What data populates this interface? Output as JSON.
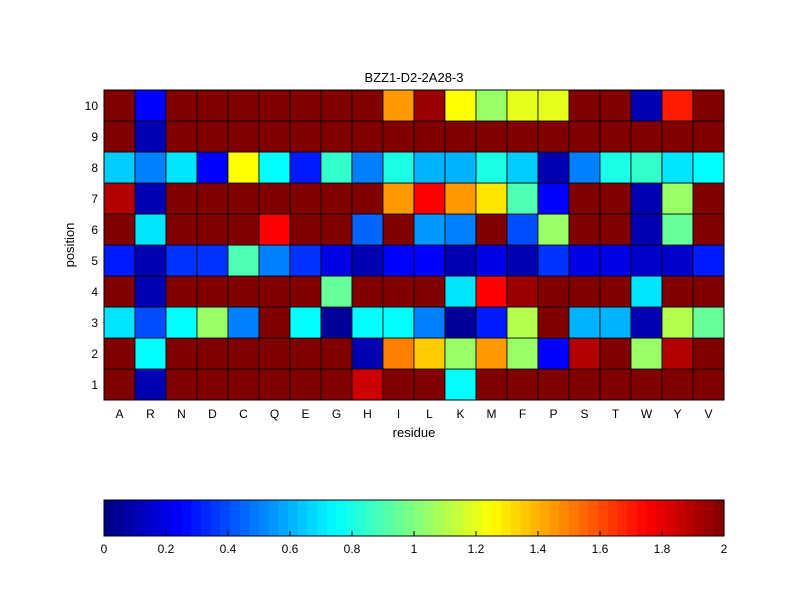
{
  "chart_data": {
    "type": "heatmap",
    "title": "BZZ1-D2-2A28-3",
    "xlabel": "residue",
    "ylabel": "position",
    "x_categories": [
      "A",
      "R",
      "N",
      "D",
      "C",
      "Q",
      "E",
      "G",
      "H",
      "I",
      "L",
      "K",
      "M",
      "F",
      "P",
      "S",
      "T",
      "W",
      "Y",
      "V"
    ],
    "y_categories": [
      "1",
      "2",
      "3",
      "4",
      "5",
      "6",
      "7",
      "8",
      "9",
      "10"
    ],
    "colormap": "jet",
    "clim": [
      0,
      2
    ],
    "colorbar": {
      "orientation": "horizontal",
      "placement": "bottom",
      "ticks": [
        "0",
        "0.2",
        "0.4",
        "0.6",
        "0.8",
        "1",
        "1.2",
        "1.4",
        "1.6",
        "1.8",
        "2"
      ]
    },
    "grid": true,
    "rows": [
      {
        "position": "1",
        "values": [
          2.0,
          0.1,
          2.0,
          2.0,
          2.0,
          2.0,
          2.0,
          2.0,
          1.85,
          2.0,
          2.0,
          0.75,
          2.0,
          2.0,
          2.0,
          2.0,
          2.0,
          2.0,
          2.0,
          2.0
        ]
      },
      {
        "position": "2",
        "values": [
          2.0,
          0.75,
          2.0,
          2.0,
          2.0,
          2.0,
          2.0,
          2.0,
          0.1,
          1.5,
          1.35,
          1.05,
          1.45,
          1.05,
          0.25,
          1.9,
          2.0,
          1.05,
          1.9,
          2.0
        ]
      },
      {
        "position": "3",
        "values": [
          0.7,
          0.4,
          0.75,
          1.05,
          0.5,
          2.0,
          0.75,
          0.05,
          0.75,
          0.75,
          0.5,
          0.05,
          0.3,
          1.1,
          2.0,
          0.6,
          0.6,
          0.1,
          1.1,
          0.95
        ]
      },
      {
        "position": "4",
        "values": [
          2.0,
          0.1,
          2.0,
          2.0,
          2.0,
          2.0,
          2.0,
          0.95,
          2.0,
          2.0,
          2.0,
          0.7,
          1.75,
          1.95,
          2.0,
          2.0,
          2.0,
          0.7,
          2.0,
          2.0
        ]
      },
      {
        "position": "5",
        "values": [
          0.3,
          0.1,
          0.35,
          0.35,
          0.9,
          0.5,
          0.35,
          0.2,
          0.1,
          0.25,
          0.25,
          0.1,
          0.2,
          0.1,
          0.35,
          0.2,
          0.2,
          0.15,
          0.15,
          0.3
        ]
      },
      {
        "position": "6",
        "values": [
          2.0,
          0.7,
          2.0,
          2.0,
          2.0,
          1.75,
          2.0,
          2.0,
          0.45,
          2.0,
          0.55,
          0.5,
          2.0,
          0.4,
          1.05,
          2.0,
          2.0,
          0.1,
          0.95,
          2.0
        ]
      },
      {
        "position": "7",
        "values": [
          1.9,
          0.1,
          2.0,
          2.0,
          2.0,
          2.0,
          2.0,
          2.0,
          2.0,
          1.45,
          1.75,
          1.45,
          1.3,
          0.9,
          0.25,
          2.0,
          2.0,
          0.1,
          1.05,
          2.0
        ]
      },
      {
        "position": "8",
        "values": [
          0.65,
          0.5,
          0.7,
          0.25,
          1.25,
          0.75,
          0.3,
          0.85,
          0.5,
          0.8,
          0.6,
          0.6,
          0.8,
          0.65,
          0.1,
          0.5,
          0.8,
          0.85,
          0.7,
          0.75
        ]
      },
      {
        "position": "9",
        "values": [
          2.0,
          0.1,
          2.0,
          2.0,
          2.0,
          2.0,
          2.0,
          2.0,
          2.0,
          2.0,
          2.0,
          2.0,
          2.0,
          2.0,
          2.0,
          2.0,
          2.0,
          2.0,
          2.0,
          2.0
        ]
      },
      {
        "position": "10",
        "values": [
          2.0,
          0.25,
          2.0,
          2.0,
          2.0,
          2.0,
          2.0,
          2.0,
          2.0,
          1.45,
          1.95,
          1.25,
          1.05,
          1.2,
          1.2,
          2.0,
          2.0,
          0.1,
          1.7,
          2.0
        ]
      }
    ]
  }
}
